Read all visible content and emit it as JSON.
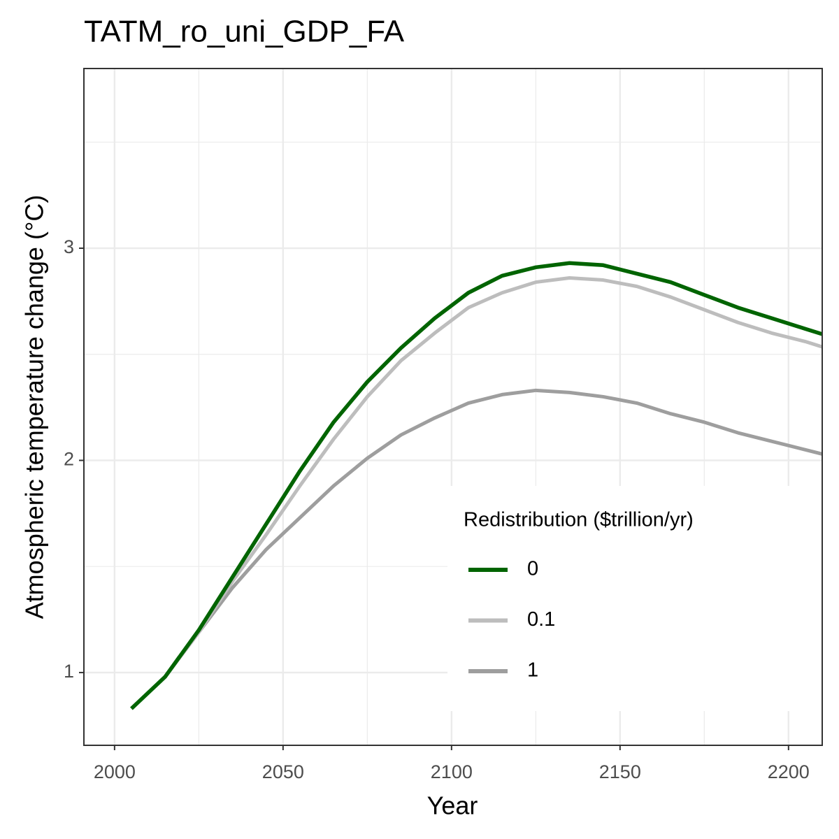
{
  "chart_data": {
    "type": "line",
    "title": "TATM_ro_uni_GDP_FA",
    "x_label": "Year",
    "y_label": "Atmospheric temperature change (°C)",
    "legend_title": "Redistribution ($trillion/yr)",
    "x": [
      2005,
      2015,
      2025,
      2035,
      2045,
      2055,
      2065,
      2075,
      2085,
      2095,
      2105,
      2115,
      2125,
      2135,
      2145,
      2155,
      2165,
      2175,
      2185,
      2195,
      2205,
      2215
    ],
    "series": [
      {
        "name": "0",
        "color": "#006400",
        "values": [
          0.83,
          0.98,
          1.2,
          1.45,
          1.7,
          1.95,
          2.18,
          2.37,
          2.53,
          2.67,
          2.79,
          2.87,
          2.91,
          2.93,
          2.92,
          2.88,
          2.84,
          2.78,
          2.72,
          2.67,
          2.62,
          2.57
        ]
      },
      {
        "name": "0.1",
        "color": "#bdbdbd",
        "values": [
          0.83,
          0.98,
          1.19,
          1.43,
          1.65,
          1.88,
          2.1,
          2.3,
          2.47,
          2.6,
          2.72,
          2.79,
          2.84,
          2.86,
          2.85,
          2.82,
          2.77,
          2.71,
          2.65,
          2.6,
          2.56,
          2.51
        ]
      },
      {
        "name": "1",
        "color": "#9e9e9e",
        "values": [
          0.83,
          0.98,
          1.19,
          1.4,
          1.58,
          1.73,
          1.88,
          2.01,
          2.12,
          2.2,
          2.27,
          2.31,
          2.33,
          2.32,
          2.3,
          2.27,
          2.22,
          2.18,
          2.13,
          2.09,
          2.05,
          2.01
        ]
      }
    ],
    "xlim": [
      1990.9,
      2210
    ],
    "xticks": [
      2000,
      2050,
      2100,
      2150,
      2200
    ],
    "ylim": [
      0.657,
      3.847
    ],
    "yticks": [
      1,
      2,
      3
    ],
    "grid": true
  }
}
